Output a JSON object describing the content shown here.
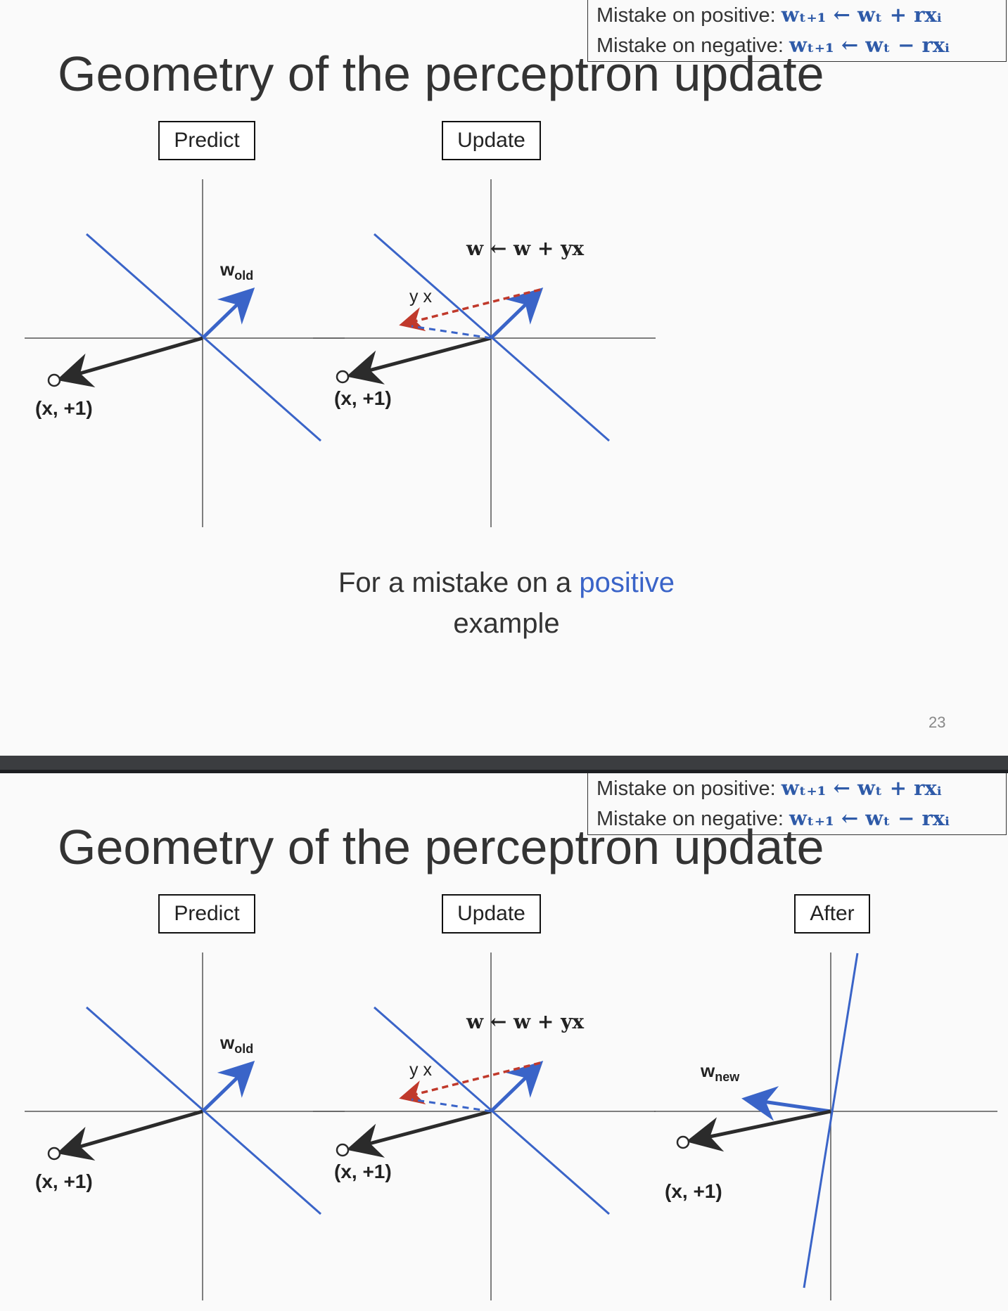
{
  "rules": {
    "positive_label": "Mistake on positive:",
    "positive_formula": "wₜ₊₁ ← wₜ + rxᵢ",
    "negative_label": "Mistake on negative:",
    "negative_formula": "wₜ₊₁ ← wₜ − rxᵢ"
  },
  "title": "Geometry of the perceptron update",
  "panels": {
    "predict": "Predict",
    "update": "Update",
    "after": "After"
  },
  "labels": {
    "w_old": "w",
    "w_old_sub": "old",
    "w_new": "w",
    "w_new_sub": "new",
    "point": "(x, +1)",
    "yx": "y x",
    "update_rule": "w ← w + yx"
  },
  "caption": {
    "prefix": "For a mistake on a ",
    "highlight": "positive",
    "suffix": "example"
  },
  "page_number": "23",
  "colors": {
    "blue": "#3a64c8",
    "red_dashed": "#c0392b",
    "black_arrow": "#2b2b2b",
    "axis": "#555555",
    "highlight_text": "#3a64c8"
  }
}
